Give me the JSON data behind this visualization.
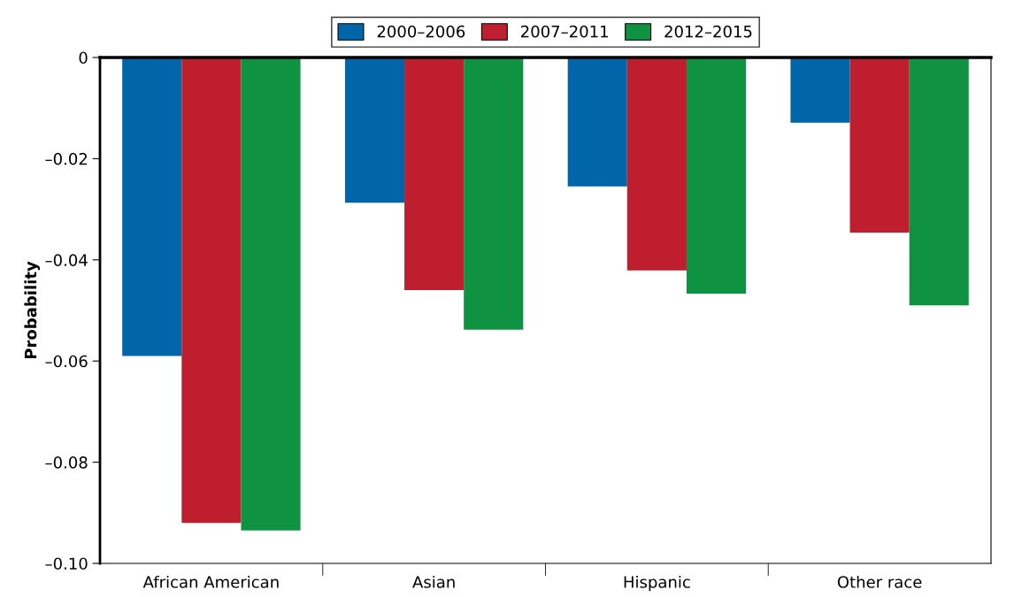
{
  "chart_data": {
    "type": "bar",
    "ylabel": "Probability",
    "categories": [
      "African American",
      "Asian",
      "Hispanic",
      "Other race"
    ],
    "series": [
      {
        "name": "2000–2006",
        "color": "#0066a9",
        "values": [
          -0.059,
          -0.0287,
          -0.0255,
          -0.0129
        ]
      },
      {
        "name": "2007–2011",
        "color": "#be1e2d",
        "values": [
          -0.092,
          -0.046,
          -0.0421,
          -0.0346
        ]
      },
      {
        "name": "2012–2015",
        "color": "#0f9342",
        "values": [
          -0.0935,
          -0.0538,
          -0.0467,
          -0.049
        ]
      }
    ],
    "ylim": [
      -0.1,
      0
    ],
    "yticks": [
      0,
      {
        "value": -0.02,
        "label": "–0.02"
      },
      {
        "value": -0.04,
        "label": "–0.04"
      },
      {
        "value": -0.06,
        "label": "–0.06"
      },
      {
        "value": -0.08,
        "label": "–0.08"
      },
      {
        "value": -0.1,
        "label": "–0.10"
      }
    ],
    "legend": "top",
    "grid": false
  }
}
